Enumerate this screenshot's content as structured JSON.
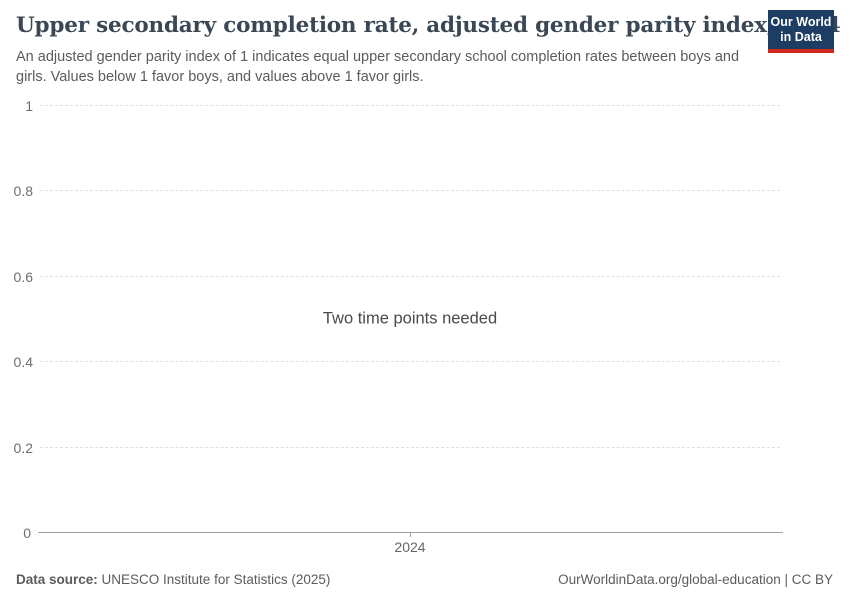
{
  "header": {
    "title": "Upper secondary completion rate, adjusted gender parity index, 2024",
    "subtitle": "An adjusted gender parity index of 1 indicates equal upper secondary school completion rates between boys and girls. Values below 1 favor boys, and values above 1 favor girls."
  },
  "logo": {
    "line1": "Our World",
    "line2": "in Data",
    "bg_color": "#1d3d63",
    "accent_color": "#d2281e"
  },
  "chart_data": {
    "type": "line",
    "title": "Upper secondary completion rate, adjusted gender parity index, 2024",
    "message": "Two time points needed",
    "series": [],
    "x_ticks": [
      "2024"
    ],
    "y_ticks": [
      0,
      0.2,
      0.4,
      0.6,
      0.8,
      1
    ],
    "ylim": [
      0,
      1
    ],
    "xlabel": "",
    "ylabel": "",
    "grid": "horizontal-dashed",
    "legend": "none"
  },
  "footer": {
    "datasource_label": "Data source:",
    "datasource_value": " UNESCO Institute for Statistics (2025)",
    "right_text": "OurWorldinData.org/global-education | CC BY"
  }
}
